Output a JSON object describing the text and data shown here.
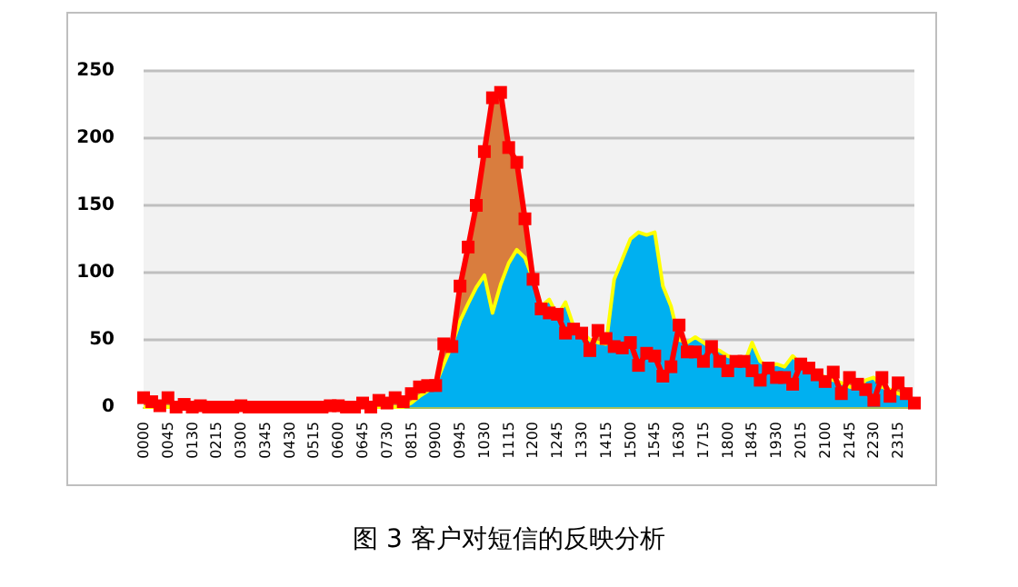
{
  "chart_data": {
    "type": "area",
    "title": "图 3 客户对短信的反映分析",
    "categories": [
      "0000",
      null,
      null,
      "0045",
      null,
      null,
      "0130",
      null,
      null,
      "0215",
      null,
      null,
      "0300",
      null,
      null,
      "0345",
      null,
      null,
      "0430",
      null,
      null,
      "0515",
      null,
      null,
      "0600",
      null,
      null,
      "0645",
      null,
      null,
      "0730",
      null,
      null,
      "0815",
      null,
      null,
      "0900",
      null,
      null,
      "0945",
      null,
      null,
      "1030",
      null,
      null,
      "1115",
      null,
      null,
      "1200",
      null,
      null,
      "1245",
      null,
      null,
      "1330",
      null,
      null,
      "1415",
      null,
      null,
      "1500",
      null,
      null,
      "1545",
      null,
      null,
      "1630",
      null,
      null,
      "1715",
      null,
      null,
      "1800",
      null,
      null,
      "1845",
      null,
      null,
      "1930",
      null,
      null,
      "2015",
      null,
      null,
      "2100",
      null,
      null,
      "2145",
      null,
      null,
      "2230",
      null,
      null,
      "2315",
      null,
      null
    ],
    "colors": [
      "#ff0000",
      "#ffff00"
    ],
    "series": [
      {
        "color": "#d97d3e",
        "marker": "square",
        "values": [
          7,
          4,
          1,
          7,
          0,
          2,
          0,
          1,
          0,
          0,
          0,
          0,
          1,
          0,
          0,
          0,
          0,
          0,
          0,
          0,
          0,
          0,
          0,
          1,
          1,
          0,
          0,
          3,
          0,
          5,
          3,
          7,
          4,
          10,
          15,
          16,
          16,
          47,
          45,
          90,
          119,
          150,
          190,
          230,
          234,
          193,
          182,
          140,
          95,
          73,
          70,
          69,
          55,
          58,
          55,
          42,
          57,
          51,
          45,
          44,
          48,
          31,
          40,
          38,
          23,
          30,
          61,
          41,
          41,
          34,
          45,
          34,
          27,
          34,
          34,
          27,
          20,
          29,
          22,
          22,
          17,
          32,
          29,
          24,
          19,
          26,
          10,
          22,
          17,
          13,
          5,
          22,
          8,
          18,
          10,
          3
        ]
      },
      {
        "color": "#00b0f0",
        "marker": "none",
        "values": [
          0,
          0,
          0,
          0,
          0,
          0,
          0,
          0,
          0,
          0,
          0,
          0,
          0,
          0,
          0,
          0,
          0,
          0,
          0,
          0,
          0,
          0,
          0,
          0,
          0,
          0,
          0,
          0,
          0,
          0,
          0,
          0,
          0,
          3,
          8,
          12,
          17,
          32,
          46,
          64,
          77,
          89,
          98,
          70,
          91,
          107,
          117,
          111,
          95,
          75,
          80,
          68,
          78,
          60,
          56,
          50,
          48,
          47,
          95,
          110,
          125,
          130,
          128,
          130,
          90,
          75,
          50,
          48,
          52,
          48,
          44,
          42,
          38,
          36,
          32,
          48,
          34,
          30,
          32,
          30,
          38,
          32,
          28,
          26,
          22,
          20,
          18,
          15,
          14,
          20,
          22,
          15,
          13,
          10,
          8,
          5
        ]
      }
    ],
    "ylim": [
      0,
      250
    ],
    "yticks": [
      0,
      50,
      100,
      150,
      200,
      250
    ],
    "grid": "y"
  }
}
